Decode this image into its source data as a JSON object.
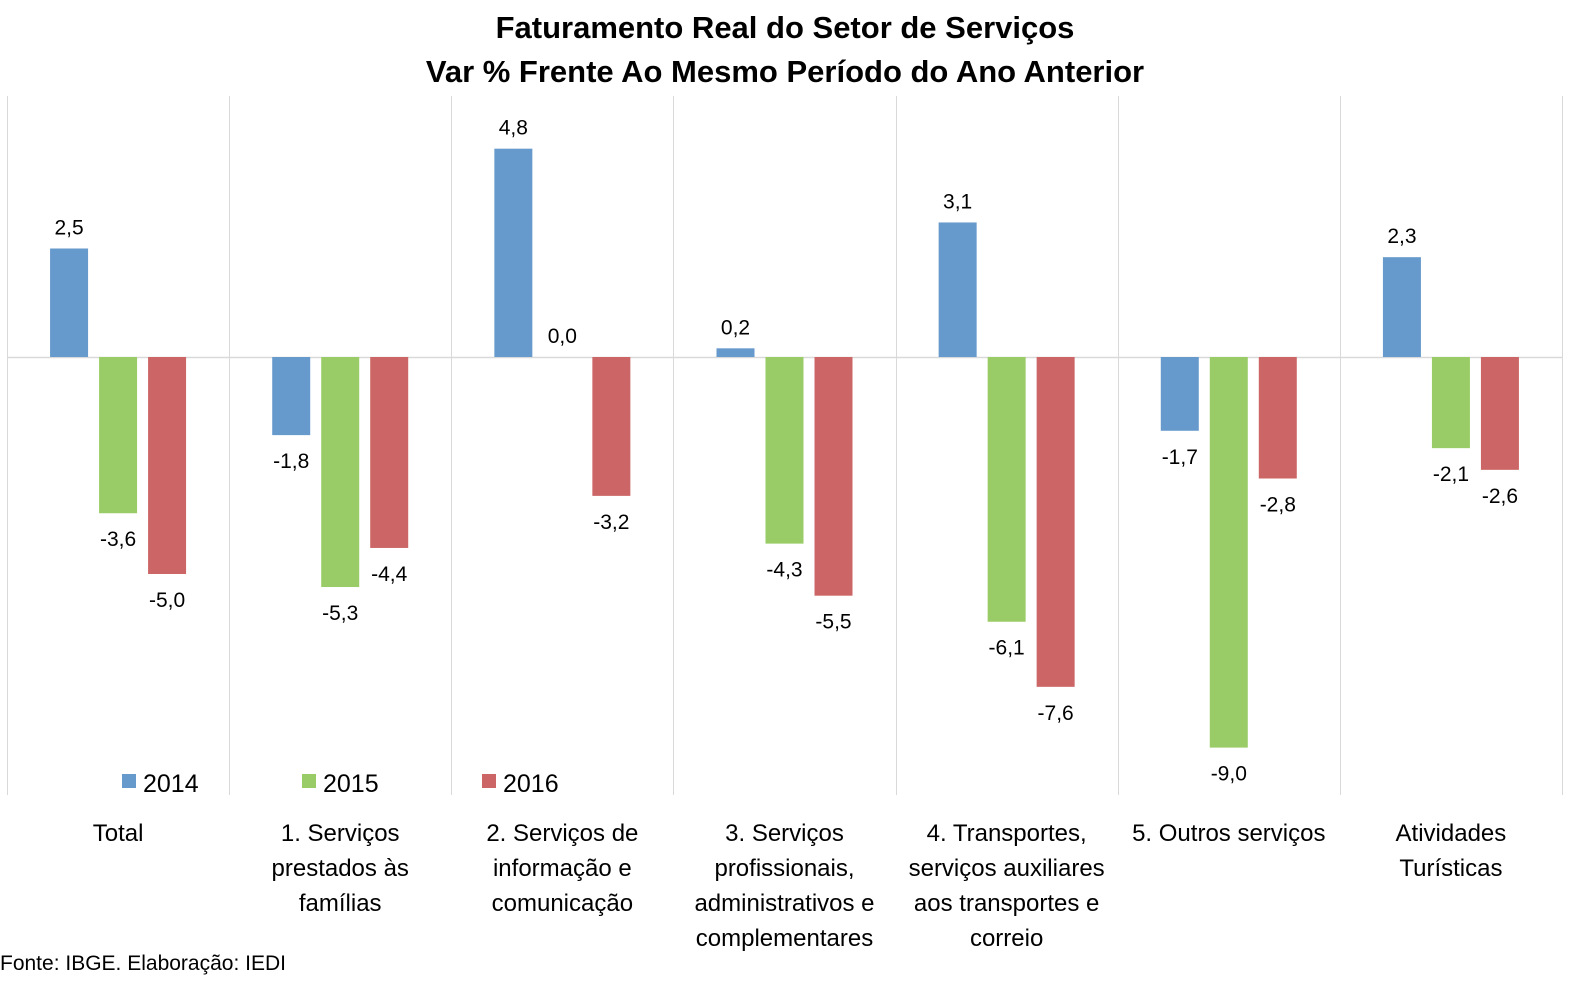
{
  "title_line1": "Faturamento Real do Setor de Serviços",
  "title_line2": "Var % Frente Ao Mesmo Período do Ano Anterior",
  "source": "Fonte: IBGE. Elaboração: IEDI",
  "chart_data": {
    "type": "bar",
    "title": "Faturamento Real do Setor de Serviços / Var % Frente Ao Mesmo Período do Ano Anterior",
    "xlabel": "",
    "ylabel": "",
    "ylim": [
      -10,
      5.5
    ],
    "grid": false,
    "legend_position": "bottom-left",
    "categories": [
      [
        "Total"
      ],
      [
        "1. Serviços",
        "prestados às",
        "famílias"
      ],
      [
        "2. Serviços de",
        "informação e",
        "comunicação"
      ],
      [
        "3. Serviços",
        "profissionais,",
        "administrativos e",
        "complementares"
      ],
      [
        "4. Transportes,",
        "serviços auxiliares",
        "aos transportes e",
        "correio"
      ],
      [
        "5. Outros serviços"
      ],
      [
        "Atividades",
        "Turísticas"
      ]
    ],
    "series": [
      {
        "name": "2014",
        "color": "#6699CC",
        "values": [
          2.5,
          -1.8,
          4.8,
          0.2,
          3.1,
          -1.7,
          2.3
        ],
        "labels": [
          "2,5",
          "-1,8",
          "4,8",
          "0,2",
          "3,1",
          "-1,7",
          "2,3"
        ]
      },
      {
        "name": "2015",
        "color": "#99CC66",
        "values": [
          -3.6,
          -5.3,
          0.0,
          -4.3,
          -6.1,
          -9.0,
          -2.1
        ],
        "labels": [
          "-3,6",
          "-5,3",
          "0,0",
          "-4,3",
          "-6,1",
          "-9,0",
          "-2,1"
        ]
      },
      {
        "name": "2016",
        "color": "#CC6666",
        "values": [
          -5.0,
          -4.4,
          -3.2,
          -5.5,
          -7.6,
          -2.8,
          -2.6
        ],
        "labels": [
          "-5,0",
          "-4,4",
          "-3,2",
          "-5,5",
          "-7,6",
          "-2,8",
          "-2,6"
        ]
      }
    ]
  }
}
